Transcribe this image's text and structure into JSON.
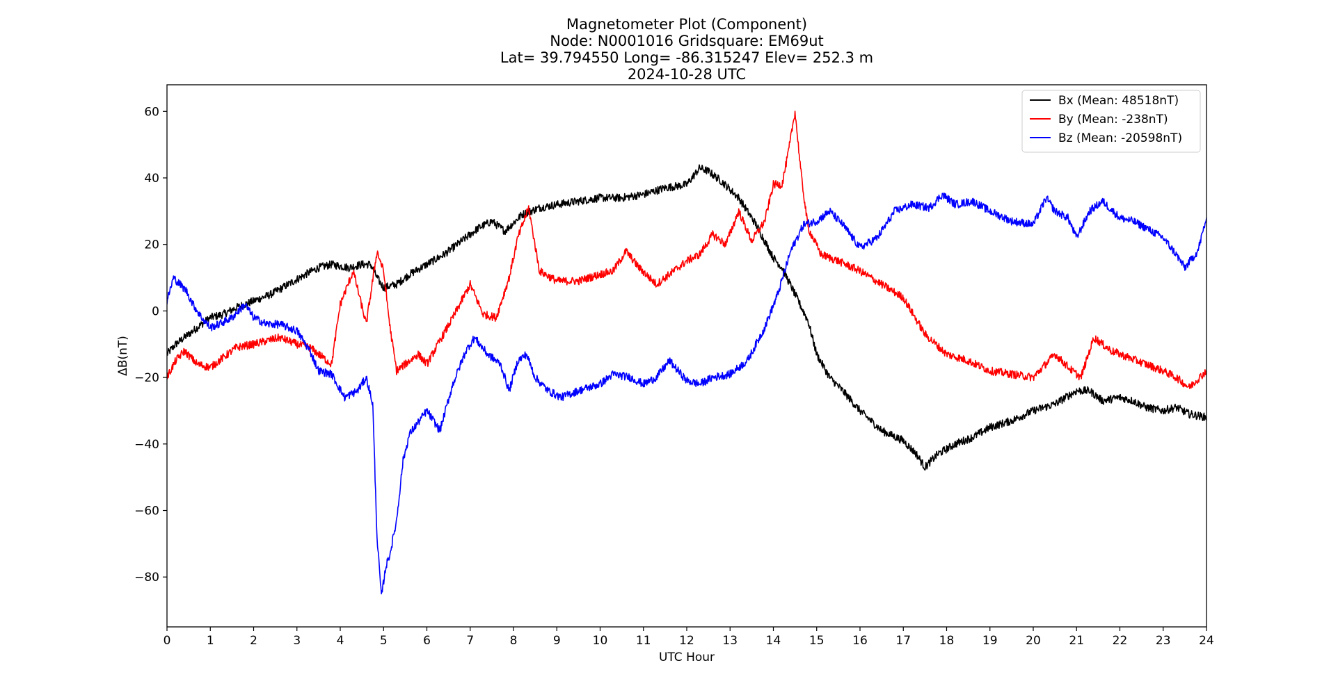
{
  "chart_data": {
    "type": "line",
    "title_lines": [
      "Magnetometer Plot (Component)",
      "Node:  N0001016     Gridsquare:  EM69ut",
      "Lat= 39.794550    Long= -86.315247    Elev= 252.3 m",
      "2024-10-28  UTC"
    ],
    "xlabel": "UTC Hour",
    "ylabel": "ΔB(nT)",
    "xlim": [
      0,
      24
    ],
    "ylim": [
      -95,
      68
    ],
    "xticks": [
      0,
      1,
      2,
      3,
      4,
      5,
      6,
      7,
      8,
      9,
      10,
      11,
      12,
      13,
      14,
      15,
      16,
      17,
      18,
      19,
      20,
      21,
      22,
      23,
      24
    ],
    "yticks": [
      -80,
      -60,
      -40,
      -20,
      0,
      20,
      40,
      60
    ],
    "ytick_labels": [
      "−80",
      "−60",
      "−40",
      "−20",
      "0",
      "20",
      "40",
      "60"
    ],
    "grid": false,
    "legend_position": "top-right",
    "series": [
      {
        "name": "Bx (Mean: 48518nT)",
        "color": "#000000",
        "x": [
          0,
          0.2,
          0.5,
          0.8,
          1,
          1.3,
          1.6,
          2,
          2.4,
          2.8,
          3.2,
          3.5,
          3.8,
          4.2,
          4.5,
          4.7,
          4.85,
          5,
          5.3,
          5.6,
          6,
          6.4,
          6.8,
          7.2,
          7.5,
          7.8,
          8.2,
          8.6,
          9,
          9.5,
          10,
          10.5,
          11,
          11.5,
          12,
          12.3,
          12.5,
          12.8,
          13.2,
          13.6,
          14,
          14.2,
          14.5,
          14.8,
          15,
          15.3,
          15.6,
          16,
          16.5,
          17,
          17.3,
          17.5,
          17.8,
          18.2,
          18.6,
          19,
          19.5,
          20,
          20.5,
          21,
          21.3,
          21.6,
          22,
          22.3,
          22.6,
          23,
          23.3,
          23.6,
          24
        ],
        "y": [
          -13,
          -10,
          -7,
          -4,
          -2,
          -1,
          1,
          3,
          5,
          8,
          11,
          13,
          14,
          13,
          14,
          14,
          10,
          7,
          8,
          11,
          14,
          17,
          21,
          25,
          27,
          24,
          29,
          31,
          32,
          33,
          34,
          34,
          35,
          37,
          38,
          43,
          42,
          39,
          34,
          26,
          16,
          13,
          5,
          -3,
          -13,
          -20,
          -24,
          -30,
          -36,
          -39,
          -43,
          -47,
          -43,
          -40,
          -38,
          -35,
          -33,
          -30,
          -28,
          -24,
          -24,
          -27,
          -26,
          -27,
          -29,
          -30,
          -29,
          -31,
          -32
        ]
      },
      {
        "name": "By (Mean: -238nT)",
        "color": "#ff0000",
        "x": [
          0,
          0.2,
          0.4,
          0.7,
          1,
          1.3,
          1.6,
          2,
          2.3,
          2.6,
          3,
          3.3,
          3.5,
          3.8,
          4,
          4.3,
          4.6,
          4.85,
          5,
          5.15,
          5.3,
          5.5,
          5.8,
          6,
          6.3,
          6.6,
          7,
          7.3,
          7.6,
          7.9,
          8.1,
          8.35,
          8.6,
          9,
          9.5,
          10,
          10.3,
          10.6,
          10.9,
          11.3,
          11.7,
          12,
          12.3,
          12.6,
          12.9,
          13.2,
          13.5,
          13.8,
          14,
          14.2,
          14.35,
          14.5,
          14.65,
          14.8,
          15.1,
          15.5,
          16,
          16.5,
          17,
          17.5,
          18,
          18.5,
          19,
          19.5,
          20,
          20.5,
          20.9,
          21.1,
          21.4,
          21.8,
          22.2,
          22.6,
          23,
          23.3,
          23.6,
          24
        ],
        "y": [
          -20,
          -15,
          -12,
          -16,
          -17,
          -14,
          -11,
          -10,
          -9,
          -8,
          -10,
          -11,
          -13,
          -16,
          2,
          12,
          -4,
          18,
          12,
          -5,
          -18,
          -16,
          -13,
          -16,
          -9,
          -2,
          8,
          -1,
          -2,
          10,
          22,
          31,
          12,
          9,
          9,
          11,
          12,
          18,
          13,
          8,
          12,
          15,
          17,
          23,
          20,
          30,
          21,
          27,
          38,
          38,
          48,
          60,
          40,
          25,
          17,
          15,
          12,
          8,
          4,
          -7,
          -13,
          -15,
          -18,
          -19,
          -20,
          -13,
          -18,
          -20,
          -8,
          -12,
          -14,
          -16,
          -18,
          -20,
          -23,
          -18
        ]
      },
      {
        "name": "Bz (Mean: -20598nT)",
        "color": "#0000ff",
        "x": [
          0,
          0.15,
          0.3,
          0.45,
          0.6,
          0.8,
          1,
          1.2,
          1.5,
          1.8,
          2,
          2.3,
          2.6,
          3,
          3.3,
          3.5,
          3.8,
          4.1,
          4.4,
          4.6,
          4.75,
          4.85,
          4.95,
          5.05,
          5.15,
          5.3,
          5.45,
          5.6,
          6,
          6.3,
          6.6,
          6.9,
          7.1,
          7.4,
          7.7,
          7.9,
          8.1,
          8.3,
          8.5,
          8.8,
          9.1,
          9.5,
          10,
          10.3,
          10.7,
          11,
          11.3,
          11.6,
          12,
          12.3,
          12.6,
          13,
          13.4,
          13.8,
          14.1,
          14.4,
          14.7,
          15,
          15.3,
          15.6,
          16,
          16.4,
          16.8,
          17.2,
          17.6,
          17.9,
          18.2,
          18.6,
          19,
          19.5,
          20,
          20.3,
          20.5,
          20.8,
          21,
          21.3,
          21.6,
          22,
          22.3,
          22.6,
          23,
          23.3,
          23.5,
          23.8,
          24
        ],
        "y": [
          3,
          10,
          8,
          6,
          2,
          -2,
          -5,
          -4,
          -2,
          2,
          -2,
          -4,
          -4,
          -6,
          -12,
          -18,
          -19,
          -26,
          -24,
          -20,
          -28,
          -68,
          -86,
          -77,
          -73,
          -63,
          -45,
          -37,
          -30,
          -36,
          -22,
          -12,
          -8,
          -13,
          -16,
          -24,
          -15,
          -13,
          -20,
          -24,
          -26,
          -24,
          -22,
          -19,
          -20,
          -22,
          -20,
          -15,
          -21,
          -22,
          -20,
          -19,
          -15,
          -5,
          5,
          18,
          26,
          27,
          30,
          26,
          19,
          22,
          30,
          32,
          31,
          35,
          32,
          33,
          30,
          27,
          26,
          34,
          30,
          28,
          22,
          30,
          33,
          28,
          27,
          25,
          22,
          17,
          13,
          18,
          28
        ]
      }
    ]
  }
}
